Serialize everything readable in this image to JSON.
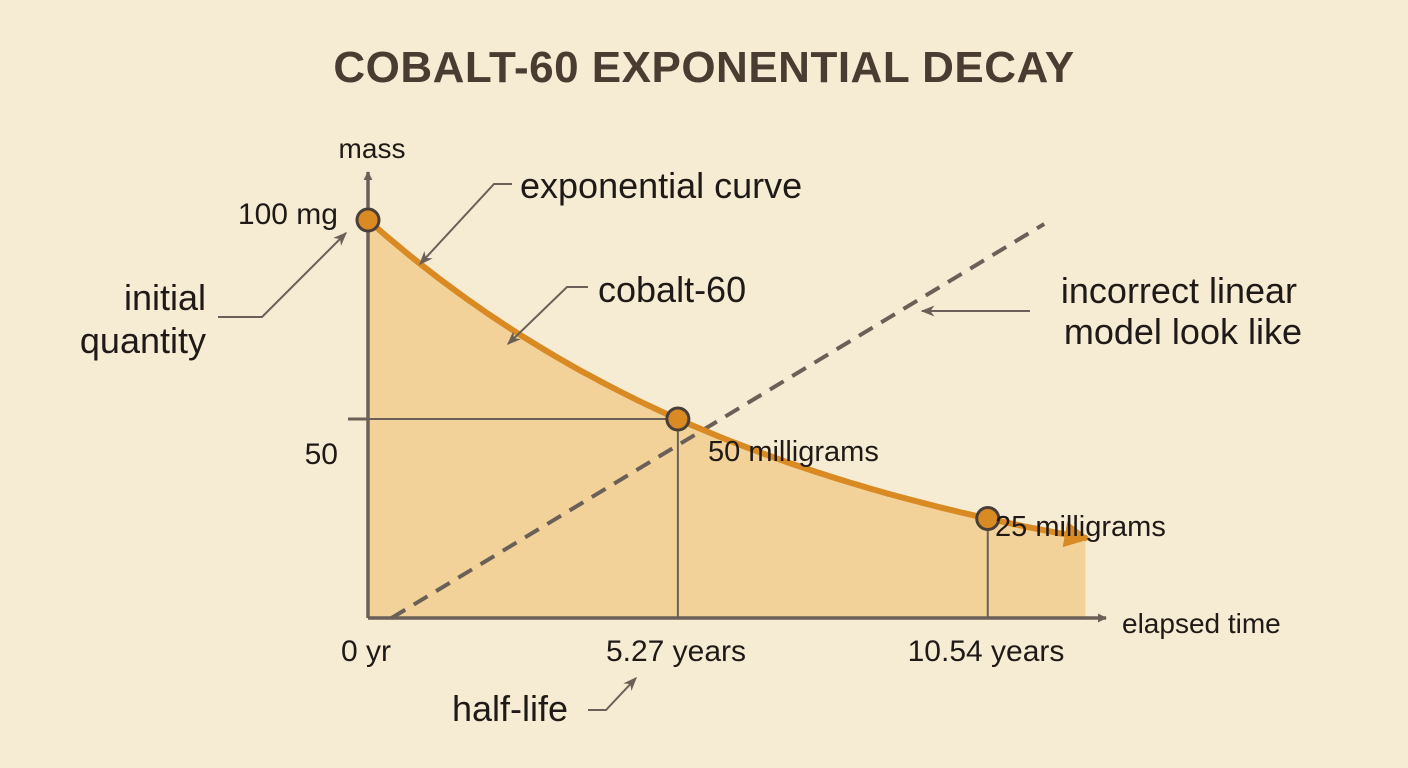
{
  "colors": {
    "background": "#f6ecd3",
    "curve": "#d98a23",
    "fill": "#f1c986",
    "axis": "#6b6058",
    "linear": "#6b6058",
    "marker_fill": "#d98a23",
    "marker_stroke": "#4a3f38",
    "title": "#4a3c30"
  },
  "chart_data": {
    "type": "line",
    "title": "COBALT-60 EXPONENTIAL DECAY",
    "xlabel": "elapsed time",
    "ylabel": "mass",
    "half_life": 5.27,
    "xlim": [
      0,
      12.2
    ],
    "ylim": [
      0,
      100
    ],
    "x_ticks": [
      {
        "value": 0,
        "label": "0 yr"
      },
      {
        "value": 5.27,
        "label": "5.27 years"
      },
      {
        "value": 10.54,
        "label": "10.54 years"
      }
    ],
    "y_ticks": [
      {
        "value": 100,
        "label": "100 mg"
      },
      {
        "value": 50,
        "label": "50"
      }
    ],
    "series": [
      {
        "name": "cobalt-60",
        "style": "solid-filled",
        "x_start": 0,
        "x_end": 12.2,
        "initial": 100
      },
      {
        "name": "",
        "style": "dashed",
        "points": [
          {
            "x": 0.4,
            "y": 0
          },
          {
            "x": 11.5,
            "y": 99
          }
        ]
      }
    ],
    "points": [
      {
        "x": 0,
        "y": 100,
        "label": ""
      },
      {
        "x": 5.27,
        "y": 50,
        "label": "50 milligrams"
      },
      {
        "x": 10.54,
        "y": 25,
        "label": "25 milligrams"
      }
    ],
    "annotations": {
      "exponential_curve": "exponential curve",
      "cobalt": "cobalt-60",
      "linear_model": [
        "incorrect linear",
        "model look like"
      ],
      "initial_quantity": [
        "initial",
        "quantity"
      ],
      "half_life": "half-life"
    }
  }
}
